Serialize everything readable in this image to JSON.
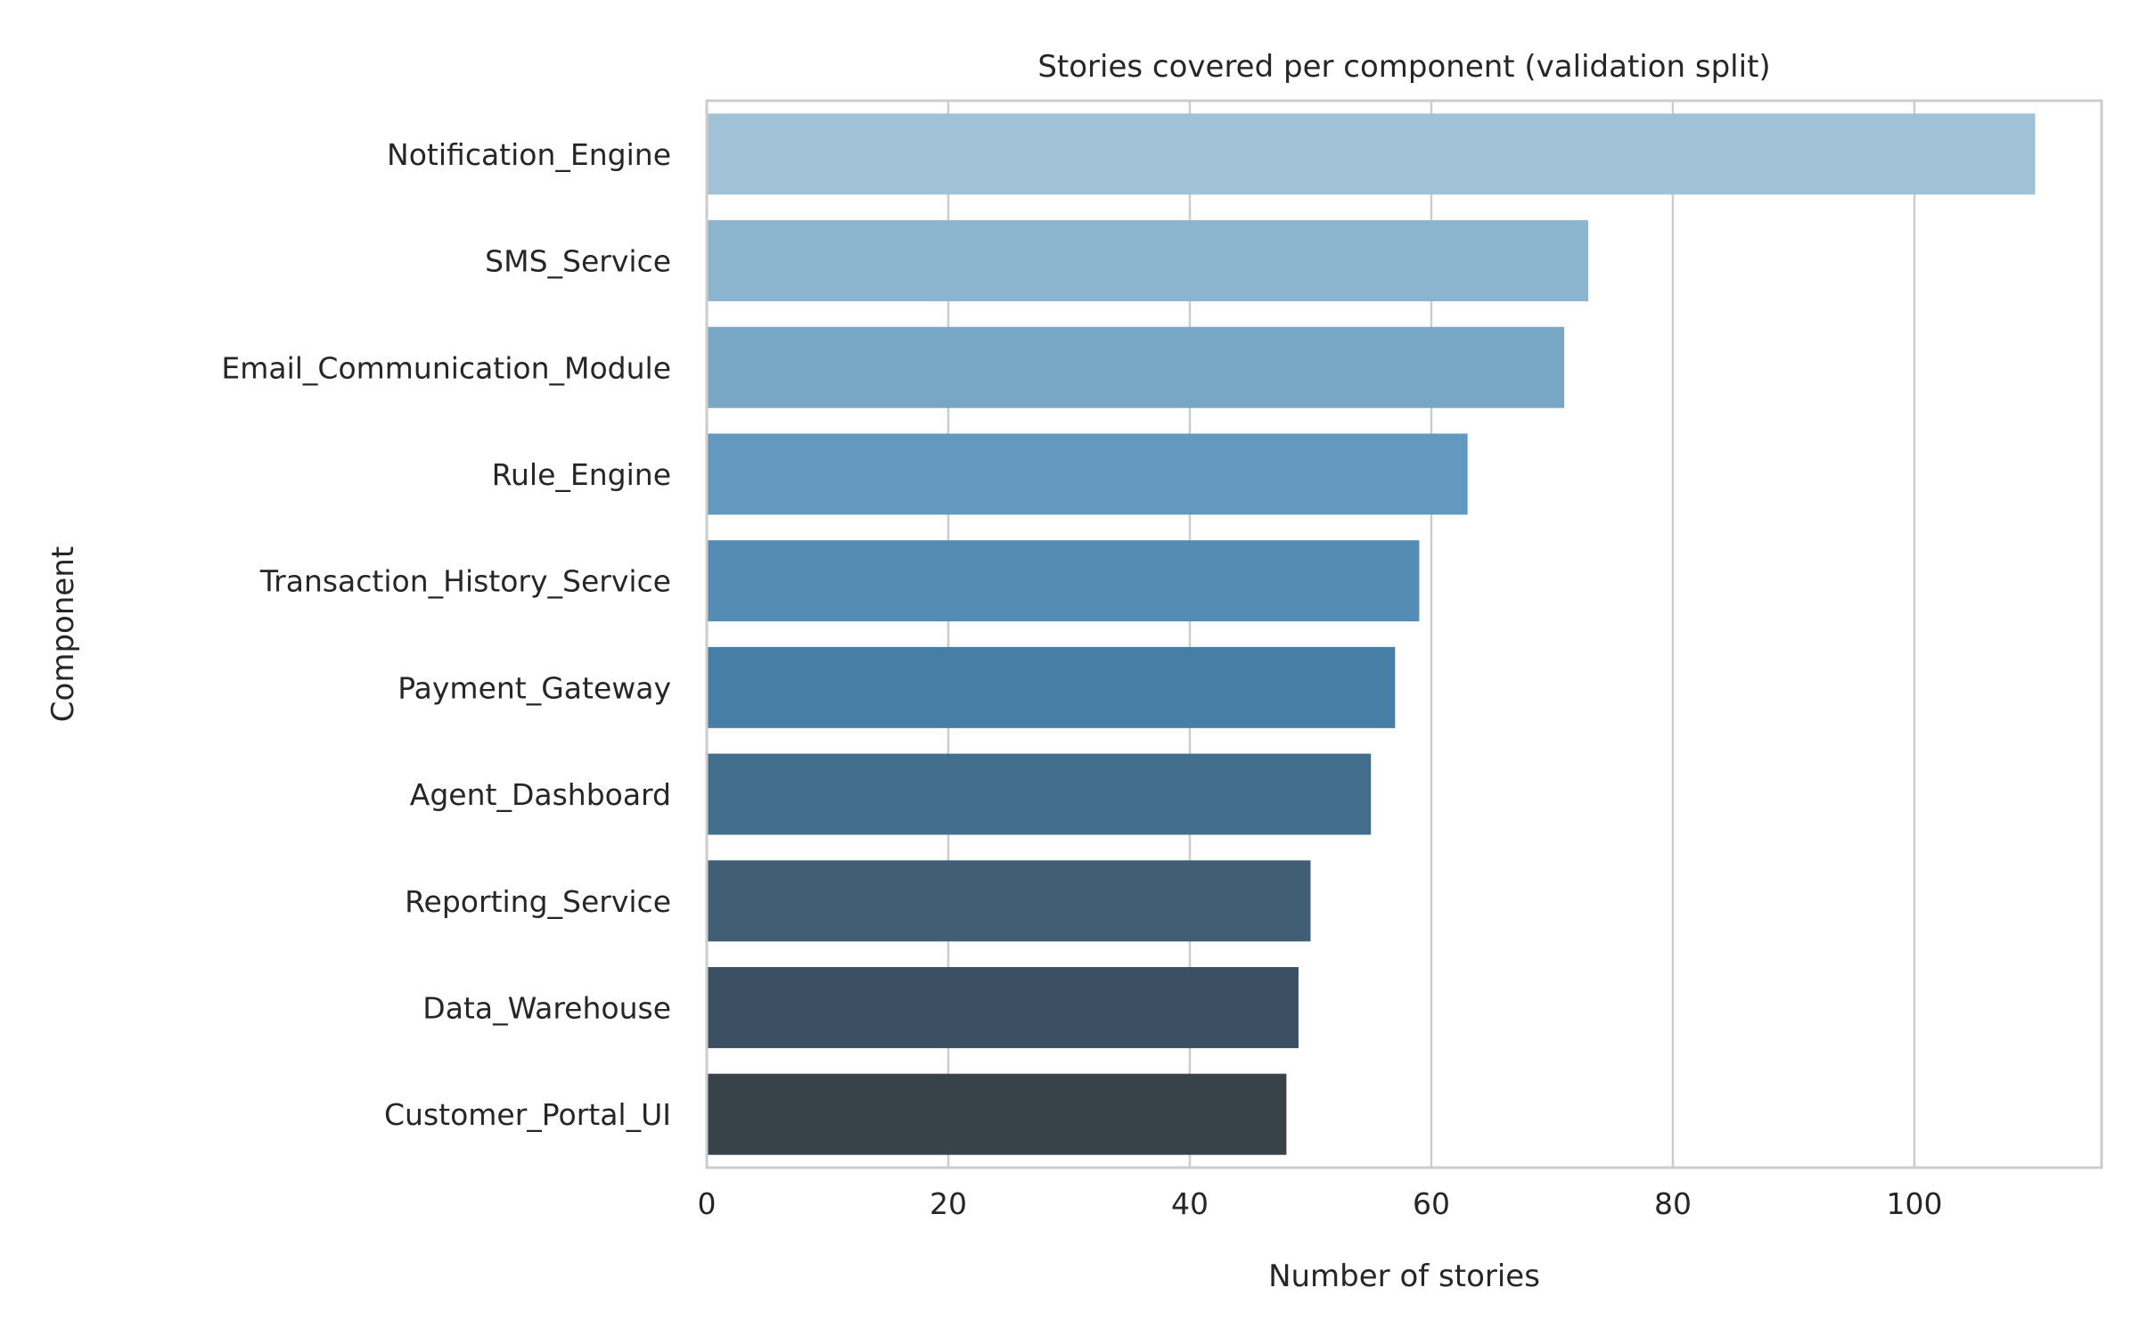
{
  "chart_data": {
    "type": "bar",
    "orientation": "horizontal",
    "title": "Stories covered per component (validation split)",
    "xlabel": "Number of stories",
    "ylabel": "Component",
    "categories": [
      "Notification_Engine",
      "SMS_Service",
      "Email_Communication_Module",
      "Rule_Engine",
      "Transaction_History_Service",
      "Payment_Gateway",
      "Agent_Dashboard",
      "Reporting_Service",
      "Data_Warehouse",
      "Customer_Portal_UI"
    ],
    "values": [
      110,
      73,
      71,
      63,
      59,
      57,
      55,
      50,
      49,
      48
    ],
    "colors": [
      "#a1c2d6",
      "#8db4cf",
      "#78a7c6",
      "#6499bf",
      "#548cb6",
      "#467ea6",
      "#436e8c",
      "#405f77",
      "#3c5063",
      "#374249"
    ],
    "xlim": [
      0,
      115.5
    ],
    "xticks": [
      0,
      20,
      40,
      60,
      80,
      100
    ],
    "grid": true,
    "legend": "none"
  }
}
